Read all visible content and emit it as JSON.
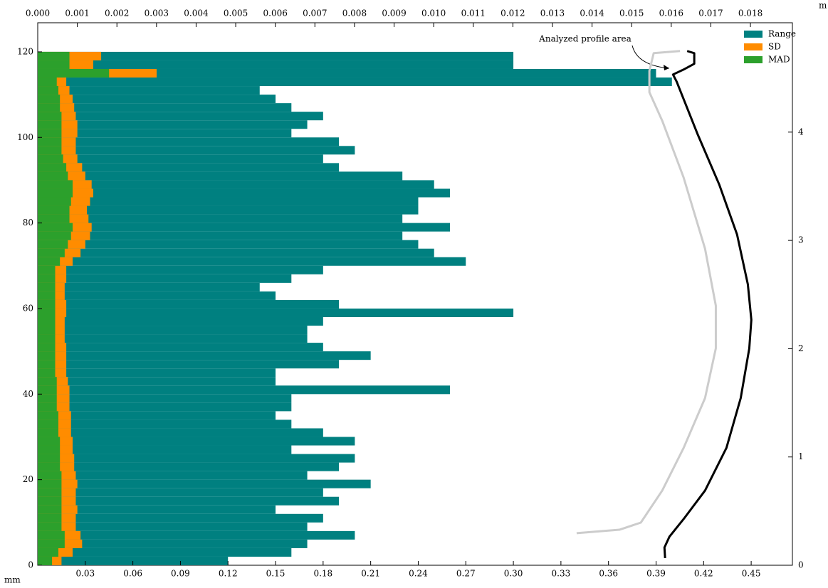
{
  "chart_data": {
    "type": "bar",
    "orientation": "horizontal",
    "y": [
      2,
      4,
      6,
      8,
      10,
      12,
      14,
      16,
      18,
      20,
      22,
      24,
      26,
      28,
      30,
      32,
      34,
      36,
      38,
      40,
      42,
      44,
      46,
      48,
      50,
      52,
      54,
      56,
      58,
      60,
      62,
      64,
      66,
      68,
      70,
      72,
      74,
      76,
      78,
      80,
      82,
      84,
      86,
      88,
      90,
      92,
      94,
      96,
      98,
      100,
      102,
      104,
      106,
      108,
      110,
      112,
      114,
      116,
      118,
      120
    ],
    "series": [
      {
        "name": "Range",
        "color": "#008080",
        "values": [
          0.12,
          0.16,
          0.17,
          0.2,
          0.17,
          0.18,
          0.15,
          0.19,
          0.18,
          0.21,
          0.17,
          0.19,
          0.2,
          0.16,
          0.2,
          0.18,
          0.16,
          0.15,
          0.16,
          0.16,
          0.26,
          0.15,
          0.15,
          0.19,
          0.21,
          0.18,
          0.17,
          0.17,
          0.18,
          0.3,
          0.19,
          0.15,
          0.14,
          0.16,
          0.18,
          0.27,
          0.25,
          0.24,
          0.23,
          0.26,
          0.23,
          0.24,
          0.24,
          0.26,
          0.25,
          0.23,
          0.19,
          0.18,
          0.2,
          0.19,
          0.16,
          0.17,
          0.18,
          0.16,
          0.15,
          0.14,
          0.4,
          0.39,
          0.3,
          0.3
        ]
      },
      {
        "name": "SD",
        "color": "#ff8c00",
        "values": [
          0.015,
          0.022,
          0.028,
          0.027,
          0.024,
          0.024,
          0.025,
          0.024,
          0.024,
          0.025,
          0.024,
          0.023,
          0.023,
          0.022,
          0.022,
          0.021,
          0.021,
          0.021,
          0.02,
          0.02,
          0.02,
          0.019,
          0.018,
          0.018,
          0.018,
          0.018,
          0.017,
          0.017,
          0.017,
          0.018,
          0.018,
          0.017,
          0.017,
          0.018,
          0.018,
          0.022,
          0.027,
          0.03,
          0.033,
          0.034,
          0.032,
          0.031,
          0.033,
          0.035,
          0.034,
          0.03,
          0.028,
          0.025,
          0.024,
          0.024,
          0.025,
          0.025,
          0.024,
          0.023,
          0.022,
          0.02,
          0.018,
          0.075,
          0.035,
          0.04
        ]
      },
      {
        "name": "MAD",
        "color": "#2ca02c",
        "values": [
          0.009,
          0.013,
          0.017,
          0.017,
          0.015,
          0.015,
          0.015,
          0.015,
          0.015,
          0.015,
          0.015,
          0.014,
          0.014,
          0.014,
          0.014,
          0.013,
          0.013,
          0.013,
          0.012,
          0.012,
          0.012,
          0.012,
          0.011,
          0.011,
          0.011,
          0.011,
          0.011,
          0.011,
          0.011,
          0.011,
          0.011,
          0.011,
          0.011,
          0.011,
          0.011,
          0.014,
          0.017,
          0.019,
          0.021,
          0.022,
          0.02,
          0.02,
          0.021,
          0.022,
          0.022,
          0.019,
          0.018,
          0.016,
          0.015,
          0.015,
          0.015,
          0.015,
          0.015,
          0.014,
          0.014,
          0.013,
          0.012,
          0.045,
          0.02,
          0.02
        ]
      }
    ],
    "xlim": [
      0,
      0.476
    ],
    "xticks": [
      0.03,
      0.06,
      0.09,
      0.12,
      0.15,
      0.18,
      0.21,
      0.24,
      0.27,
      {
        "value": 0.3,
        "label": "0.30"
      },
      0.33,
      0.36,
      0.39,
      0.42,
      0.45
    ],
    "x_unit": "mm",
    "x2lim": [
      0,
      0.01906
    ],
    "x2ticks": [
      {
        "value": 0,
        "label": "0.000"
      },
      {
        "value": 0.001,
        "label": "0.001"
      },
      {
        "value": 0.002,
        "label": "0.002"
      },
      {
        "value": 0.003,
        "label": "0.003"
      },
      {
        "value": 0.004,
        "label": "0.004"
      },
      {
        "value": 0.005,
        "label": "0.005"
      },
      {
        "value": 0.006,
        "label": "0.006"
      },
      {
        "value": 0.007,
        "label": "0.007"
      },
      {
        "value": 0.008,
        "label": "0.008"
      },
      {
        "value": 0.009,
        "label": "0.009"
      },
      {
        "value": 0.01,
        "label": "0.010"
      },
      {
        "value": 0.011,
        "label": "0.011"
      },
      {
        "value": 0.012,
        "label": "0.012"
      },
      {
        "value": 0.013,
        "label": "0.013"
      },
      {
        "value": 0.014,
        "label": "0.014"
      },
      {
        "value": 0.015,
        "label": "0.015"
      },
      {
        "value": 0.016,
        "label": "0.016"
      },
      {
        "value": 0.017,
        "label": "0.017"
      },
      {
        "value": 0.018,
        "label": "0.018"
      }
    ],
    "ylim": [
      0,
      126.8
    ],
    "yticks": [
      0,
      20,
      40,
      60,
      80,
      100,
      120
    ],
    "y2lim": [
      0,
      5.01
    ],
    "y2ticks": [
      0,
      1,
      2,
      3,
      4
    ],
    "y2_unit": "m",
    "legend": "upper right",
    "profiles": [
      {
        "color": "#000000",
        "x": [
          0.3957,
          0.3953,
          0.3984,
          0.4074,
          0.4209,
          0.4344,
          0.4434,
          0.4488,
          0.4501,
          0.4479,
          0.4411,
          0.4299,
          0.4164,
          0.403,
          0.4007,
          0.4074,
          0.4141,
          0.4141,
          0.4096
        ],
        "y": [
          0.066,
          0.164,
          0.263,
          0.427,
          0.69,
          1.084,
          1.544,
          2.003,
          2.266,
          2.594,
          3.054,
          3.514,
          3.974,
          4.466,
          4.532,
          4.578,
          4.631,
          4.729,
          4.749
        ]
      },
      {
        "color": "#cccccc",
        "x": [
          0.4051,
          0.3885,
          0.3858,
          0.3858,
          0.3939,
          0.4074,
          0.4209,
          0.4277,
          0.4277,
          0.4209,
          0.4074,
          0.3939,
          0.3804,
          0.3669,
          0.3399
        ],
        "y": [
          4.749,
          4.729,
          4.565,
          4.368,
          4.105,
          3.58,
          2.923,
          2.397,
          2.003,
          1.544,
          1.084,
          0.69,
          0.394,
          0.328,
          0.296
        ]
      }
    ],
    "annotation": "Analyzed profile area"
  }
}
